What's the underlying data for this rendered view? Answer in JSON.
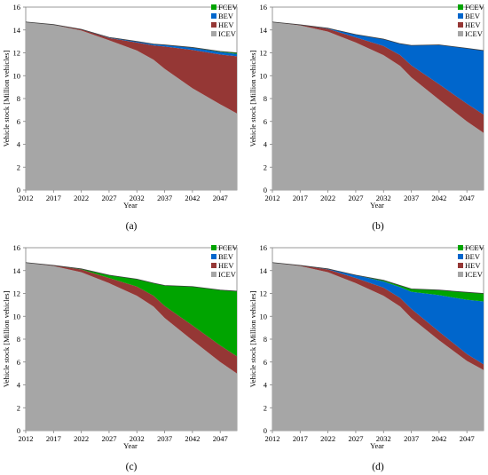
{
  "figure": {
    "panels": [
      "(a)",
      "(b)",
      "(c)",
      "(d)"
    ]
  },
  "colors": {
    "ICEV": "#a6a6a6",
    "HEV": "#953735",
    "BEV": "#0066cc",
    "FCEV": "#00a400"
  },
  "chart_data": [
    {
      "type": "area",
      "caption": "(a)",
      "xlabel": "Year",
      "ylabel": "Vehicle stock [Million vehicles]",
      "xlim": [
        2012,
        2050
      ],
      "ylim": [
        0,
        16
      ],
      "yticks": [
        0,
        2,
        4,
        6,
        8,
        10,
        12,
        14,
        16
      ],
      "xticks": [
        2012,
        2017,
        2022,
        2027,
        2032,
        2037,
        2042,
        2047
      ],
      "legend": [
        "FCEV",
        "BEV",
        "HEV",
        "ICEV"
      ],
      "legend_position": "top-right",
      "stacked": true,
      "x": [
        2012,
        2017,
        2022,
        2027,
        2032,
        2035,
        2037,
        2042,
        2047,
        2050
      ],
      "series": [
        {
          "name": "ICEV",
          "values": [
            14.7,
            14.45,
            13.95,
            13.1,
            12.2,
            11.4,
            10.6,
            8.9,
            7.5,
            6.7
          ]
        },
        {
          "name": "HEV",
          "values": [
            0,
            0.02,
            0.1,
            0.2,
            0.7,
            1.25,
            1.95,
            3.35,
            4.35,
            5.0
          ]
        },
        {
          "name": "BEV",
          "values": [
            0,
            0,
            0.01,
            0.05,
            0.1,
            0.12,
            0.15,
            0.2,
            0.22,
            0.2
          ]
        },
        {
          "name": "FCEV",
          "values": [
            0,
            0,
            0,
            0,
            0,
            0,
            0,
            0.02,
            0.05,
            0.1
          ]
        }
      ]
    },
    {
      "type": "area",
      "caption": "(b)",
      "xlabel": "Year",
      "ylabel": "Vehicle stock [Million vehicles]",
      "xlim": [
        2012,
        2050
      ],
      "ylim": [
        0,
        16
      ],
      "yticks": [
        0,
        2,
        4,
        6,
        8,
        10,
        12,
        14,
        16
      ],
      "xticks": [
        2012,
        2017,
        2022,
        2027,
        2032,
        2037,
        2042,
        2047
      ],
      "legend": [
        "FCEV",
        "BEV",
        "HEV",
        "ICEV"
      ],
      "legend_position": "top-right",
      "stacked": true,
      "x": [
        2012,
        2017,
        2022,
        2027,
        2032,
        2035,
        2037,
        2042,
        2047,
        2050
      ],
      "series": [
        {
          "name": "ICEV",
          "values": [
            14.7,
            14.4,
            13.85,
            12.9,
            11.8,
            10.85,
            9.85,
            7.9,
            6.0,
            5.0
          ]
        },
        {
          "name": "HEV",
          "values": [
            0,
            0.05,
            0.25,
            0.45,
            0.8,
            0.95,
            1.05,
            1.35,
            1.55,
            1.6
          ]
        },
        {
          "name": "BEV",
          "values": [
            0,
            0,
            0.05,
            0.25,
            0.6,
            1.0,
            1.75,
            3.45,
            4.85,
            5.6
          ]
        },
        {
          "name": "FCEV",
          "values": [
            0,
            0,
            0,
            0,
            0,
            0,
            0,
            0,
            0,
            0
          ]
        }
      ]
    },
    {
      "type": "area",
      "caption": "(c)",
      "xlabel": "Year",
      "ylabel": "Vehicle stock [Million vehicles]",
      "xlim": [
        2012,
        2050
      ],
      "ylim": [
        0,
        16
      ],
      "yticks": [
        0,
        2,
        4,
        6,
        8,
        10,
        12,
        14,
        16
      ],
      "xticks": [
        2012,
        2017,
        2022,
        2027,
        2032,
        2037,
        2042,
        2047
      ],
      "legend": [
        "FCEV",
        "BEV",
        "HEV",
        "ICEV"
      ],
      "legend_position": "top-right",
      "stacked": true,
      "x": [
        2012,
        2017,
        2022,
        2027,
        2032,
        2035,
        2037,
        2042,
        2047,
        2050
      ],
      "series": [
        {
          "name": "ICEV",
          "values": [
            14.7,
            14.4,
            13.85,
            12.9,
            11.8,
            10.85,
            9.85,
            7.9,
            6.0,
            5.0
          ]
        },
        {
          "name": "HEV",
          "values": [
            0,
            0.05,
            0.25,
            0.45,
            0.8,
            0.95,
            1.05,
            1.3,
            1.45,
            1.5
          ]
        },
        {
          "name": "BEV",
          "values": [
            0,
            0,
            0,
            0,
            0,
            0,
            0,
            0,
            0,
            0
          ]
        },
        {
          "name": "FCEV",
          "values": [
            0,
            0,
            0.05,
            0.25,
            0.65,
            1.1,
            1.8,
            3.4,
            4.85,
            5.7
          ]
        }
      ]
    },
    {
      "type": "area",
      "caption": "(d)",
      "xlabel": "Year",
      "ylabel": "Vehicle stock [Million vehicles]",
      "xlim": [
        2012,
        2050
      ],
      "ylim": [
        0,
        16
      ],
      "yticks": [
        0,
        2,
        4,
        6,
        8,
        10,
        12,
        14,
        16
      ],
      "xticks": [
        2012,
        2017,
        2022,
        2027,
        2032,
        2037,
        2042,
        2047
      ],
      "legend": [
        "FCEV",
        "BEV",
        "HEV",
        "ICEV"
      ],
      "legend_position": "top-right",
      "stacked": true,
      "x": [
        2012,
        2017,
        2022,
        2027,
        2032,
        2035,
        2037,
        2042,
        2047,
        2050
      ],
      "series": [
        {
          "name": "ICEV",
          "values": [
            14.7,
            14.4,
            13.85,
            12.9,
            11.8,
            10.85,
            9.85,
            7.9,
            6.1,
            5.3
          ]
        },
        {
          "name": "HEV",
          "values": [
            0,
            0.05,
            0.25,
            0.45,
            0.7,
            0.75,
            0.8,
            0.75,
            0.6,
            0.5
          ]
        },
        {
          "name": "BEV",
          "values": [
            0,
            0,
            0.05,
            0.25,
            0.55,
            0.95,
            1.5,
            3.2,
            4.75,
            5.5
          ]
        },
        {
          "name": "FCEV",
          "values": [
            0,
            0,
            0,
            0,
            0.1,
            0.15,
            0.25,
            0.45,
            0.65,
            0.7
          ]
        }
      ]
    }
  ]
}
